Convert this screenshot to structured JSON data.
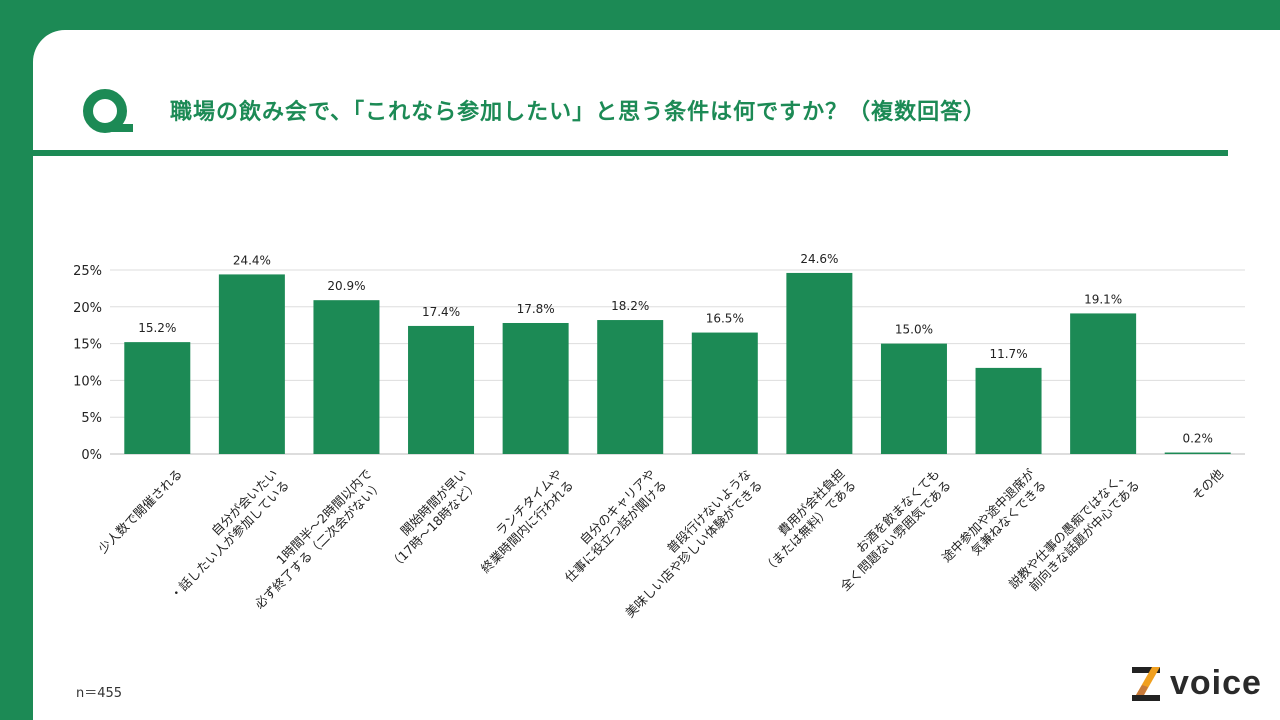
{
  "header": {
    "title": "職場の飲み会で、「これなら参加したい」と思う条件は何ですか？（複数回答）",
    "q_icon": "q-letter-icon"
  },
  "footer": {
    "sample_size": "n＝455",
    "logo_text": "voice"
  },
  "colors": {
    "brand": "#1c8a55",
    "bar": "#1c8a55",
    "grid": "#dddddd"
  },
  "chart_data": {
    "type": "bar",
    "title": "",
    "xlabel": "",
    "ylabel": "",
    "ylim": [
      0,
      25
    ],
    "yticks": [
      "0%",
      "5%",
      "10%",
      "15%",
      "20%",
      "25%"
    ],
    "grid": true,
    "categories": [
      [
        "少人数で開催される"
      ],
      [
        "自分が会いたい",
        "・話したい人が参加している"
      ],
      [
        "1時間半～2時間以内で",
        "必ず終了する（二次会がない）"
      ],
      [
        "開始時間が早い",
        "（17時～18時など）"
      ],
      [
        "ランチタイムや",
        "終業時間内に行われる"
      ],
      [
        "自分のキャリアや",
        "仕事に役立つ話が聞ける"
      ],
      [
        "普段行けないような",
        "美味しい店や珍しい体験ができる"
      ],
      [
        "費用が会社負担",
        "（または無料）である"
      ],
      [
        "お酒を飲まなくても",
        "全く問題ない雰囲気である"
      ],
      [
        "途中参加や途中退席が",
        "気兼ねなくできる"
      ],
      [
        "説教や仕事の愚痴ではなく、",
        "前向きな話題が中心である"
      ],
      [
        "その他"
      ]
    ],
    "values": [
      15.2,
      24.4,
      20.9,
      17.4,
      17.8,
      18.2,
      16.5,
      24.6,
      15.0,
      11.7,
      19.1,
      0.2
    ],
    "data_labels": [
      "15.2%",
      "24.4%",
      "20.9%",
      "17.4%",
      "17.8%",
      "18.2%",
      "16.5%",
      "24.6%",
      "15.0%",
      "11.7%",
      "19.1%",
      "0.2%"
    ]
  }
}
